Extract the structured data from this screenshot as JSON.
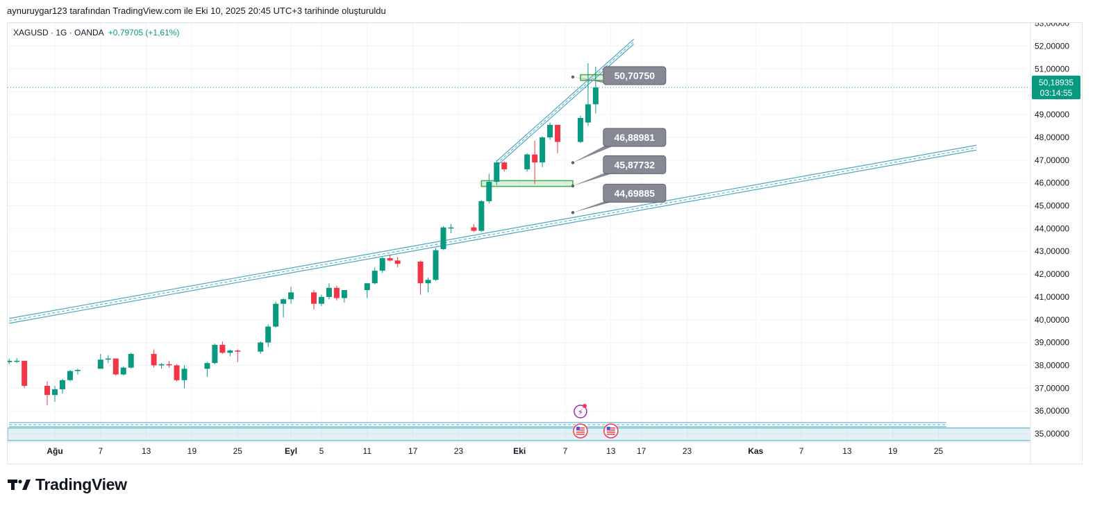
{
  "header": {
    "caption": "aynuruygar123 tarafından TradingView.com ile Eki 10, 2025 20:45 UTC+3 tarihinde oluşturuldu"
  },
  "symbol": {
    "label": "XAGUSD · 1G · OANDA",
    "change": "+0,79705 (+1,61%)"
  },
  "branding": {
    "name": "TradingView",
    "logo_icon": "tradingview-logo-icon"
  },
  "colors": {
    "up": "#089981",
    "down": "#f23645",
    "channel": "#4aa6c3",
    "zone_stroke": "#4caf50",
    "zone_fill": "rgba(76,175,80,0.18)",
    "label_bg": "#868993",
    "price_tag": "#089981",
    "grid": "#f0f3fa"
  },
  "chart_data": {
    "type": "candlestick",
    "title": "XAGUSD · 1G · OANDA",
    "symbol": "XAGUSD",
    "interval": "1G",
    "ylim": [
      34.5,
      53.0
    ],
    "y_ticks": [
      "35,00000",
      "36,00000",
      "37,00000",
      "38,00000",
      "39,00000",
      "40,00000",
      "41,00000",
      "42,00000",
      "43,00000",
      "44,00000",
      "45,00000",
      "46,00000",
      "47,00000",
      "48,00000",
      "49,00000",
      "50,00000",
      "51,00000",
      "52,00000",
      "53,00000"
    ],
    "x_labels": [
      {
        "text": "Ağu",
        "day": 0,
        "bold": true
      },
      {
        "text": "7",
        "day": 6
      },
      {
        "text": "13",
        "day": 12
      },
      {
        "text": "19",
        "day": 18
      },
      {
        "text": "25",
        "day": 24
      },
      {
        "text": "Eyl",
        "day": 31,
        "bold": true
      },
      {
        "text": "5",
        "day": 35
      },
      {
        "text": "11",
        "day": 41
      },
      {
        "text": "17",
        "day": 47
      },
      {
        "text": "23",
        "day": 53
      },
      {
        "text": "Eki",
        "day": 61,
        "bold": true
      },
      {
        "text": "7",
        "day": 67
      },
      {
        "text": "13",
        "day": 73
      },
      {
        "text": "17",
        "day": 77
      },
      {
        "text": "23",
        "day": 83
      },
      {
        "text": "Kas",
        "day": 92,
        "bold": true
      },
      {
        "text": "7",
        "day": 98
      },
      {
        "text": "13",
        "day": 104
      },
      {
        "text": "19",
        "day": 110
      },
      {
        "text": "25",
        "day": 116
      }
    ],
    "candles": [
      {
        "day": -6,
        "o": 38.14,
        "h": 38.3,
        "l": 38.05,
        "c": 38.2
      },
      {
        "day": -5,
        "o": 38.2,
        "h": 38.32,
        "l": 38.1,
        "c": 38.2
      },
      {
        "day": -4,
        "o": 38.2,
        "h": 38.2,
        "l": 37.0,
        "c": 37.1
      },
      {
        "day": -1,
        "o": 37.1,
        "h": 37.3,
        "l": 36.25,
        "c": 36.7
      },
      {
        "day": 0,
        "o": 36.7,
        "h": 37.1,
        "l": 36.4,
        "c": 36.95
      },
      {
        "day": 1,
        "o": 36.95,
        "h": 37.4,
        "l": 36.75,
        "c": 37.35
      },
      {
        "day": 2,
        "o": 37.35,
        "h": 37.8,
        "l": 37.3,
        "c": 37.75
      },
      {
        "day": 3,
        "o": 37.75,
        "h": 37.85,
        "l": 37.6,
        "c": 37.8
      },
      {
        "day": 6,
        "o": 37.85,
        "h": 38.5,
        "l": 37.85,
        "c": 38.25
      },
      {
        "day": 7,
        "o": 38.25,
        "h": 38.45,
        "l": 38.1,
        "c": 38.3
      },
      {
        "day": 8,
        "o": 38.3,
        "h": 38.3,
        "l": 37.55,
        "c": 37.6
      },
      {
        "day": 9,
        "o": 37.6,
        "h": 37.95,
        "l": 37.55,
        "c": 37.9
      },
      {
        "day": 10,
        "o": 37.9,
        "h": 38.55,
        "l": 37.85,
        "c": 38.5
      },
      {
        "day": 13,
        "o": 38.5,
        "h": 38.7,
        "l": 37.9,
        "c": 38.0
      },
      {
        "day": 14,
        "o": 38.0,
        "h": 38.1,
        "l": 37.85,
        "c": 38.05
      },
      {
        "day": 15,
        "o": 38.05,
        "h": 38.2,
        "l": 37.9,
        "c": 38.0
      },
      {
        "day": 16,
        "o": 38.0,
        "h": 38.05,
        "l": 37.3,
        "c": 37.35
      },
      {
        "day": 17,
        "o": 37.35,
        "h": 38.0,
        "l": 37.0,
        "c": 37.85
      },
      {
        "day": 20,
        "o": 37.85,
        "h": 38.15,
        "l": 37.5,
        "c": 38.1
      },
      {
        "day": 21,
        "o": 38.1,
        "h": 38.95,
        "l": 38.05,
        "c": 38.9
      },
      {
        "day": 22,
        "o": 38.9,
        "h": 39.05,
        "l": 38.5,
        "c": 38.55
      },
      {
        "day": 23,
        "o": 38.55,
        "h": 38.7,
        "l": 38.4,
        "c": 38.65
      },
      {
        "day": 24,
        "o": 38.65,
        "h": 38.7,
        "l": 38.15,
        "c": 38.6
      },
      {
        "day": 27,
        "o": 38.6,
        "h": 39.05,
        "l": 38.5,
        "c": 39.0
      },
      {
        "day": 28,
        "o": 39.0,
        "h": 39.8,
        "l": 38.8,
        "c": 39.7
      },
      {
        "day": 29,
        "o": 39.7,
        "h": 40.8,
        "l": 39.65,
        "c": 40.7
      },
      {
        "day": 30,
        "o": 40.7,
        "h": 40.95,
        "l": 40.1,
        "c": 40.9
      },
      {
        "day": 31,
        "o": 40.9,
        "h": 41.45,
        "l": 40.7,
        "c": 41.2
      },
      {
        "day": 34,
        "o": 41.2,
        "h": 41.3,
        "l": 40.45,
        "c": 40.7
      },
      {
        "day": 35,
        "o": 40.7,
        "h": 41.1,
        "l": 40.6,
        "c": 41.0
      },
      {
        "day": 36,
        "o": 41.0,
        "h": 41.6,
        "l": 40.9,
        "c": 41.4
      },
      {
        "day": 37,
        "o": 41.4,
        "h": 41.5,
        "l": 40.85,
        "c": 40.95
      },
      {
        "day": 38,
        "o": 40.95,
        "h": 41.2,
        "l": 40.75,
        "c": 41.3
      },
      {
        "day": 41,
        "o": 41.3,
        "h": 41.6,
        "l": 40.95,
        "c": 41.6
      },
      {
        "day": 42,
        "o": 41.6,
        "h": 42.3,
        "l": 41.55,
        "c": 42.15
      },
      {
        "day": 43,
        "o": 42.15,
        "h": 42.75,
        "l": 42.05,
        "c": 42.7
      },
      {
        "day": 44,
        "o": 42.7,
        "h": 42.85,
        "l": 42.55,
        "c": 42.6
      },
      {
        "day": 45,
        "o": 42.6,
        "h": 42.75,
        "l": 42.3,
        "c": 42.45
      },
      {
        "day": 48,
        "o": 42.55,
        "h": 42.6,
        "l": 41.1,
        "c": 41.6
      },
      {
        "day": 49,
        "o": 41.6,
        "h": 41.85,
        "l": 41.2,
        "c": 41.75
      },
      {
        "day": 50,
        "o": 41.75,
        "h": 43.15,
        "l": 41.7,
        "c": 43.05
      },
      {
        "day": 51,
        "o": 43.1,
        "h": 44.1,
        "l": 43.05,
        "c": 44.05
      },
      {
        "day": 52,
        "o": 44.05,
        "h": 44.2,
        "l": 43.8,
        "c": 44.05
      },
      {
        "day": 55,
        "o": 44.05,
        "h": 44.2,
        "l": 43.85,
        "c": 43.9
      },
      {
        "day": 56,
        "o": 43.9,
        "h": 45.25,
        "l": 43.85,
        "c": 45.2
      },
      {
        "day": 57,
        "o": 45.2,
        "h": 46.4,
        "l": 45.1,
        "c": 46.05
      },
      {
        "day": 58,
        "o": 46.05,
        "h": 47.0,
        "l": 45.9,
        "c": 46.9
      },
      {
        "day": 59,
        "o": 46.9,
        "h": 46.95,
        "l": 46.5,
        "c": 46.6
      },
      {
        "day": 62,
        "o": 46.6,
        "h": 47.3,
        "l": 46.5,
        "c": 47.25
      },
      {
        "day": 63,
        "o": 47.25,
        "h": 47.85,
        "l": 45.95,
        "c": 46.9
      },
      {
        "day": 64,
        "o": 46.9,
        "h": 48.05,
        "l": 46.7,
        "c": 48.0
      },
      {
        "day": 65,
        "o": 48.0,
        "h": 48.65,
        "l": 47.9,
        "c": 48.55
      },
      {
        "day": 66,
        "o": 48.55,
        "h": 48.5,
        "l": 47.3,
        "c": 47.8
      },
      {
        "day": 69,
        "o": 47.8,
        "h": 48.95,
        "l": 47.75,
        "c": 48.85
      },
      {
        "day": 70,
        "o": 48.65,
        "h": 51.25,
        "l": 48.5,
        "c": 49.45
      },
      {
        "day": 71,
        "o": 49.45,
        "h": 51.1,
        "l": 49.05,
        "c": 50.19
      }
    ],
    "zones": [
      {
        "day_start": 69,
        "day_end": 79,
        "top": 50.75,
        "bottom": 50.5
      },
      {
        "day_start": 56,
        "day_end": 68,
        "top": 46.1,
        "bottom": 45.85
      }
    ],
    "channels": [
      {
        "day_start": -6,
        "p_start": 39.95,
        "day_end": 121,
        "p_end": 47.55
      },
      {
        "day_start": 58,
        "p_start": 46.85,
        "day_end": 76,
        "p_end": 52.2
      }
    ],
    "base_band": {
      "day_start": -6,
      "day_end": 117,
      "price": 35.4
    },
    "base_zone": {
      "top": 35.25,
      "bottom": 34.7
    },
    "callouts": [
      {
        "text": "50,70750",
        "day": 72,
        "price": 50.7075,
        "anchor_day": 68,
        "anchor_price": 50.65
      },
      {
        "text": "46,88981",
        "day": 72,
        "price": 48.0,
        "anchor_day": 68,
        "anchor_price": 46.89
      },
      {
        "text": "45,87732",
        "day": 72,
        "price": 46.8,
        "anchor_day": 68,
        "anchor_price": 45.87
      },
      {
        "text": "44,69885",
        "day": 72,
        "price": 45.55,
        "anchor_day": 68,
        "anchor_price": 44.7
      }
    ],
    "current_price": {
      "value": "50,18935",
      "price": 50.18935,
      "countdown": "03:14:55"
    },
    "event_icons": [
      {
        "name": "flash-event-icon",
        "day": 69
      },
      {
        "name": "us-flag-event-icon",
        "day": 69
      },
      {
        "name": "us-flag-event-icon",
        "day": 73
      }
    ]
  }
}
